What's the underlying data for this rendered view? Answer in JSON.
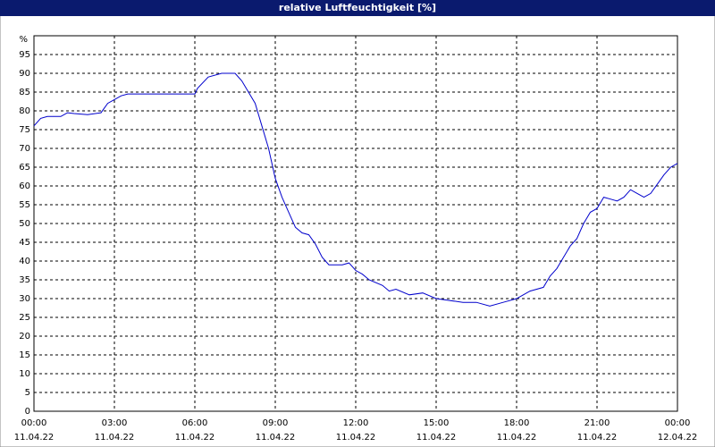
{
  "chart_data": {
    "type": "line",
    "title": "relative Luftfeuchtigkeit [%]",
    "y_label": "%",
    "x": [
      0,
      0.25,
      0.5,
      1,
      1.25,
      1.5,
      2,
      2.5,
      2.75,
      3,
      3.25,
      3.5,
      6,
      6.1,
      6.5,
      7,
      7.5,
      7.75,
      8,
      8.25,
      8.5,
      8.75,
      9,
      9.25,
      9.5,
      9.75,
      10,
      10.25,
      10.5,
      10.75,
      11,
      11.5,
      11.75,
      12,
      12.25,
      12.5,
      13,
      13.25,
      13.5,
      14,
      14.5,
      15,
      15.5,
      16,
      16.5,
      17,
      17.5,
      18,
      18.25,
      18.5,
      19,
      19.25,
      19.5,
      20,
      20.25,
      20.5,
      20.75,
      21,
      21.25,
      21.5,
      21.75,
      22,
      22.25,
      22.5,
      22.75,
      23,
      23.25,
      23.5,
      23.75,
      24
    ],
    "series": [
      {
        "name": "relative Luftfeuchtigkeit",
        "color": "#0000cc",
        "values": [
          76,
          78,
          78.5,
          78.5,
          79.5,
          79.3,
          79,
          79.5,
          82,
          83,
          84,
          84.5,
          84.5,
          86,
          89,
          90,
          90,
          88,
          85,
          82,
          76,
          70,
          62,
          57,
          53,
          49,
          47.5,
          47,
          44.5,
          41,
          39,
          39,
          39.5,
          37.5,
          36.5,
          35,
          33.5,
          32,
          32.5,
          31,
          31.5,
          30,
          29.5,
          29,
          29,
          28,
          29,
          30,
          31,
          32,
          33,
          36,
          38,
          44,
          46,
          50,
          53,
          54,
          57,
          56.5,
          56,
          57,
          59,
          58,
          57,
          58,
          60.5,
          63,
          65,
          66
        ]
      }
    ],
    "xlim": [
      0,
      24
    ],
    "xticks": [
      {
        "value": 0,
        "label": "00:00"
      },
      {
        "value": 3,
        "label": "03:00"
      },
      {
        "value": 6,
        "label": "06:00"
      },
      {
        "value": 9,
        "label": "09:00"
      },
      {
        "value": 12,
        "label": "12:00"
      },
      {
        "value": 15,
        "label": "15:00"
      },
      {
        "value": 18,
        "label": "18:00"
      },
      {
        "value": 21,
        "label": "21:00"
      },
      {
        "value": 24,
        "label": "00:00"
      }
    ],
    "xtick_dates": [
      "11.04.22",
      "11.04.22",
      "11.04.22",
      "11.04.22",
      "11.04.22",
      "11.04.22",
      "11.04.22",
      "11.04.22",
      "12.04.22"
    ],
    "ylim": [
      0,
      100
    ],
    "yticks": [
      0,
      5,
      10,
      15,
      20,
      25,
      30,
      35,
      40,
      45,
      50,
      55,
      60,
      65,
      70,
      75,
      80,
      85,
      90,
      95
    ],
    "grid": true
  }
}
